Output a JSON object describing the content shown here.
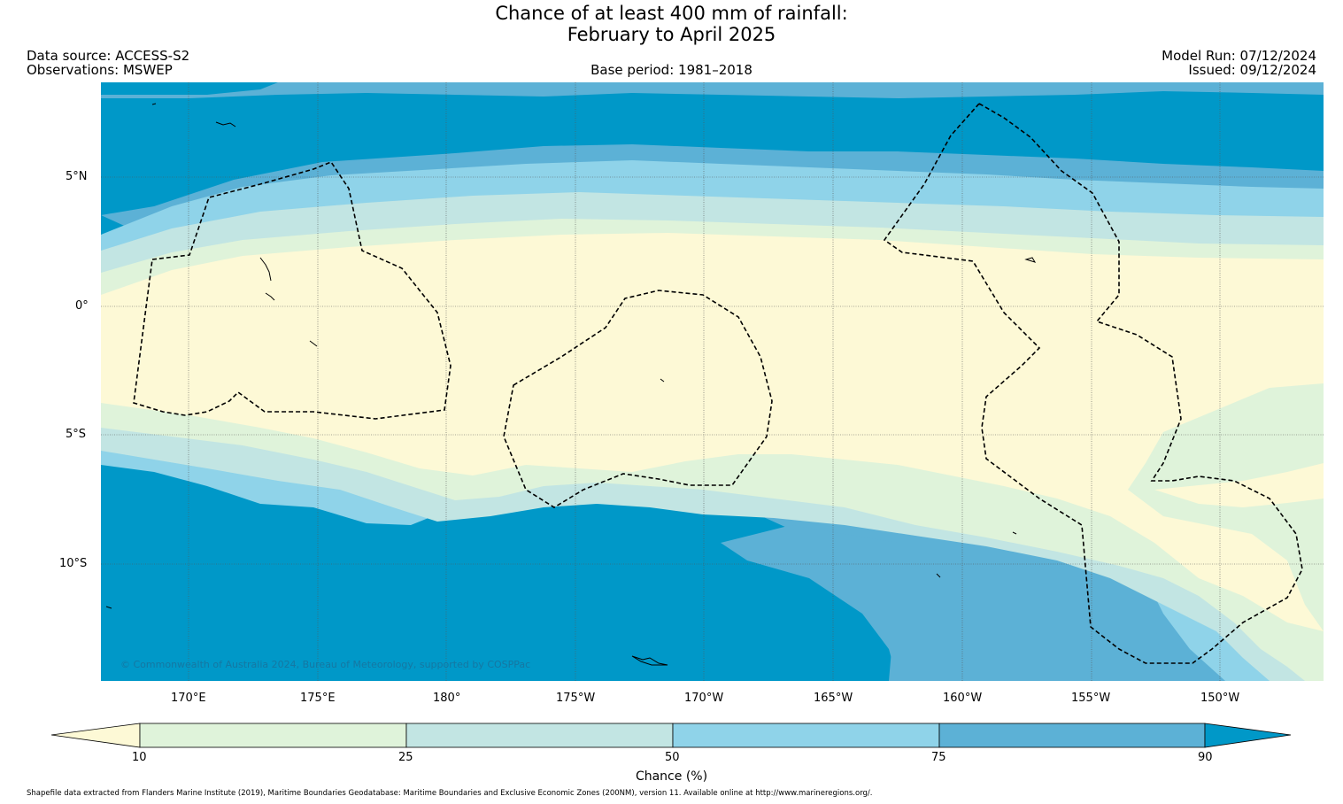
{
  "title": {
    "line1": "Chance of at least 400 mm of rainfall:",
    "line2": "February to April 2025"
  },
  "header": {
    "data_source": "Data source: ACCESS-S2",
    "observations": "Observations: MSWEP",
    "base_period": "Base period: 1981–2018",
    "model_run": "Model Run: 07/12/2024",
    "issued": "Issued: 09/12/2024"
  },
  "map": {
    "latitude_labels": [
      "5°N",
      "0°",
      "5°S",
      "10°S"
    ],
    "longitude_labels": [
      "170°E",
      "175°E",
      "180°",
      "175°W",
      "170°W",
      "165°W",
      "160°W",
      "155°W",
      "150°W"
    ],
    "watermark": "© Commonwealth of Australia 2024, Bureau of Meteorology, supported by COSPPac",
    "band_colors": {
      "below_10": "#fdf9d6",
      "10_25": "#dff3da",
      "25_50": "#c2e5e3",
      "50_75": "#8fd3e9",
      "75_90": "#5cb1d6",
      "above_90": "#0098c8"
    },
    "eez_boundary_style": "dashed black"
  },
  "colorbar": {
    "ticks": [
      "10",
      "25",
      "50",
      "75",
      "90"
    ],
    "label": "Chance (%)",
    "colors": [
      "#fdf9d6",
      "#dff3da",
      "#c2e5e3",
      "#8fd3e9",
      "#5cb1d6",
      "#0098c8"
    ]
  },
  "footer": {
    "credit": "Shapefile data extracted from Flanders Marine Institute (2019), Maritime Boundaries Geodatabase: Maritime Boundaries and Exclusive Economic Zones (200NM), version 11. Available online at http://www.marineregions.org/."
  }
}
